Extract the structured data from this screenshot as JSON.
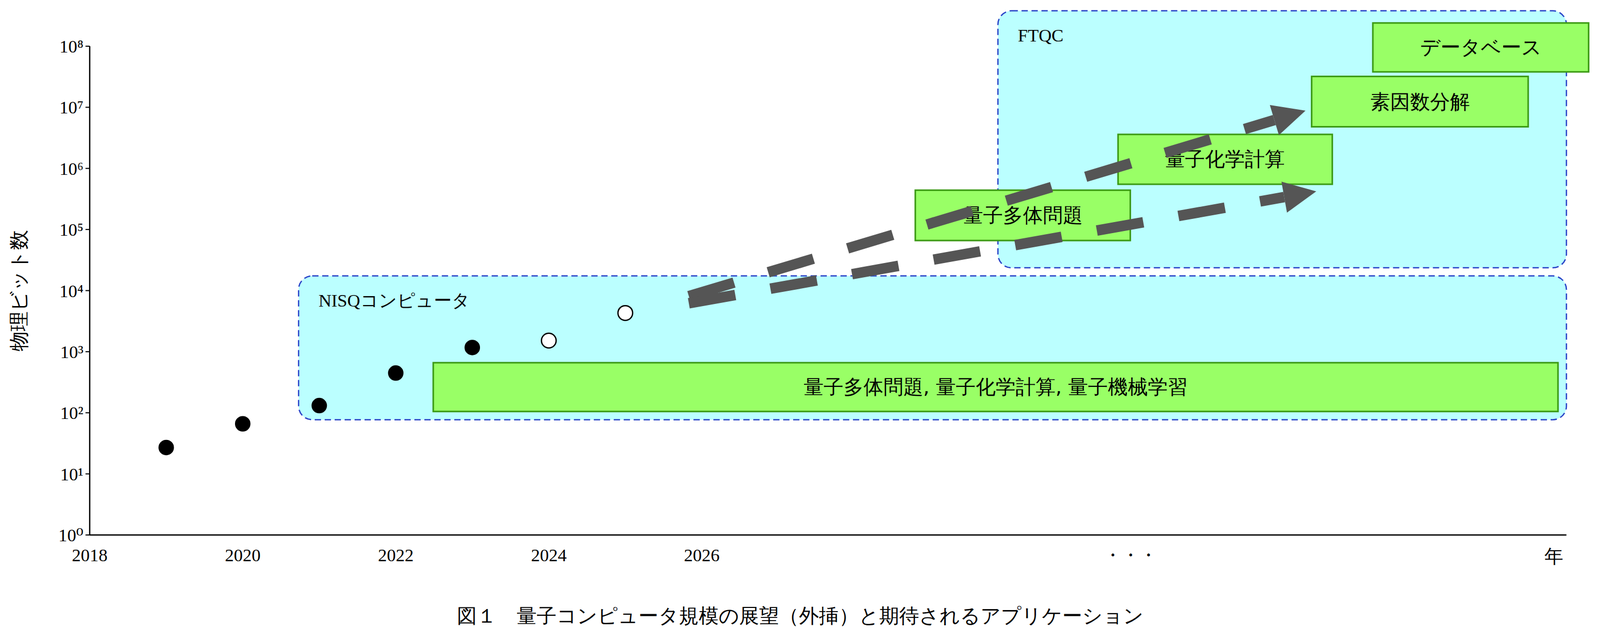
{
  "chart_data": {
    "type": "scatter",
    "title": "図１　量子コンピュータ規模の展望（外挿）と期待されるアプリケーション",
    "x_label": "年",
    "y_label": "物理ビット数",
    "log": "y",
    "grid": false,
    "xlim": [
      2018,
      2037.3
    ],
    "xticks": [
      2018,
      2020,
      2022,
      2024,
      2026,
      {
        "value": 2031.6,
        "label": "・・・"
      }
    ],
    "ylim": [
      1,
      100000000
    ],
    "yticks": [
      {
        "value": 1,
        "label": "10⁰"
      },
      {
        "value": 10,
        "label": "10¹"
      },
      {
        "value": 100,
        "label": "10²"
      },
      {
        "value": 1000,
        "label": "10³"
      },
      {
        "value": 10000,
        "label": "10⁴"
      },
      {
        "value": 100000,
        "label": "10⁵"
      },
      {
        "value": 1000000,
        "label": "10⁶"
      },
      {
        "value": 10000000,
        "label": "10⁷"
      },
      {
        "value": 100000000,
        "label": "10⁸"
      }
    ],
    "series": [
      {
        "marker": "filled",
        "color": "#000000",
        "x": [
          2019,
          2020,
          2021,
          2022,
          2023
        ],
        "values": [
          27,
          66,
          131,
          447,
          1170
        ]
      },
      {
        "marker": "open",
        "color": "#000000",
        "x": [
          2024,
          2025
        ],
        "values": [
          1520,
          4300
        ]
      }
    ],
    "regions": [
      {
        "label": "NISQコンピュータ",
        "x": [
          2020.73,
          2037.3
        ],
        "y": [
          77,
          17400
        ],
        "color": "#bbffff"
      },
      {
        "label": "FTQC",
        "x": [
          2029.87,
          2037.3
        ],
        "y": [
          23600,
          380000000
        ],
        "color": "#bbffff"
      }
    ],
    "arrows": [
      {
        "x": [
          2025.83,
          2033.89
        ],
        "y": [
          8100,
          8800000
        ],
        "color": "#555555",
        "line_style": "dashed"
      },
      {
        "x": [
          2025.83,
          2034.03
        ],
        "y": [
          6200,
          420000
        ],
        "color": "#555555",
        "line_style": "dashed"
      }
    ],
    "applications": [
      {
        "label": "量子多体問題, 量子化学計算, 量子機械学習",
        "x": [
          2022.49,
          2037.19
        ],
        "y": [
          105,
          660
        ],
        "color": "#99ff66"
      },
      {
        "label": "量子多体問題",
        "x": [
          2028.79,
          2031.6
        ],
        "y": [
          66000,
          440000
        ],
        "color": "#99ff66"
      },
      {
        "label": "量子化学計算",
        "x": [
          2031.44,
          2034.24
        ],
        "y": [
          550000,
          3600000
        ],
        "color": "#99ff66"
      },
      {
        "label": "素因数分解",
        "x": [
          2033.97,
          2036.8
        ],
        "y": [
          4800000,
          32000000
        ],
        "color": "#99ff66"
      },
      {
        "label": "データベース",
        "x": [
          2034.77,
          2037.59
        ],
        "y": [
          38000000,
          240000000
        ],
        "color": "#99ff66"
      }
    ]
  }
}
